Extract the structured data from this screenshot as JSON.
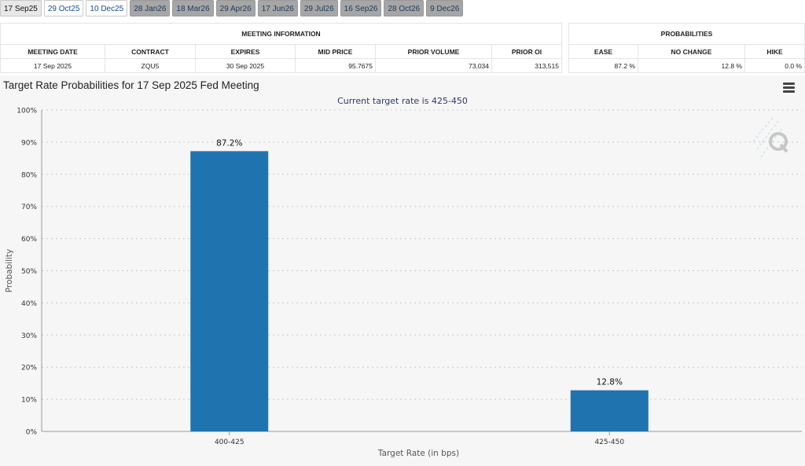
{
  "tabs": [
    {
      "label": "17 Sep25",
      "state": "active"
    },
    {
      "label": "29 Oct25",
      "state": "available"
    },
    {
      "label": "10 Dec25",
      "state": "available"
    },
    {
      "label": "28 Jan26",
      "state": "disabled"
    },
    {
      "label": "18 Mar26",
      "state": "disabled"
    },
    {
      "label": "29 Apr26",
      "state": "disabled"
    },
    {
      "label": "17 Jun26",
      "state": "disabled"
    },
    {
      "label": "29 Jul26",
      "state": "disabled"
    },
    {
      "label": "16 Sep26",
      "state": "disabled"
    },
    {
      "label": "28 Oct26",
      "state": "disabled"
    },
    {
      "label": "9 Dec26",
      "state": "disabled"
    }
  ],
  "meeting_info": {
    "header": "MEETING INFORMATION",
    "columns": [
      "MEETING DATE",
      "CONTRACT",
      "EXPIRES",
      "MID PRICE",
      "PRIOR VOLUME",
      "PRIOR OI"
    ],
    "row": [
      "17 Sep 2025",
      "ZQU5",
      "30 Sep 2025",
      "95.7675",
      "73,034",
      "313,515"
    ]
  },
  "probabilities": {
    "header": "PROBABILITIES",
    "columns": [
      "EASE",
      "NO CHANGE",
      "HIKE"
    ],
    "row": [
      "87.2 %",
      "12.8 %",
      "0.0 %"
    ]
  },
  "chart": {
    "title": "Target Rate Probabilities for 17 Sep 2025 Fed Meeting",
    "subtitle": "Current target rate is 425-450",
    "menu_icon": "hamburger-menu-icon",
    "watermark_icon": "quikstrike-logo-icon"
  },
  "chart_data": {
    "type": "bar",
    "categories": [
      "400-425",
      "425-450"
    ],
    "values": [
      87.2,
      12.8
    ],
    "data_labels": [
      "87.2%",
      "12.8%"
    ],
    "xlabel": "Target Rate (in bps)",
    "ylabel": "Probability",
    "ylim": [
      0,
      100
    ],
    "yticks": [
      "0%",
      "10%",
      "20%",
      "30%",
      "40%",
      "50%",
      "60%",
      "70%",
      "80%",
      "90%",
      "100%"
    ],
    "grid": true,
    "bar_color": "#1f74b0"
  }
}
